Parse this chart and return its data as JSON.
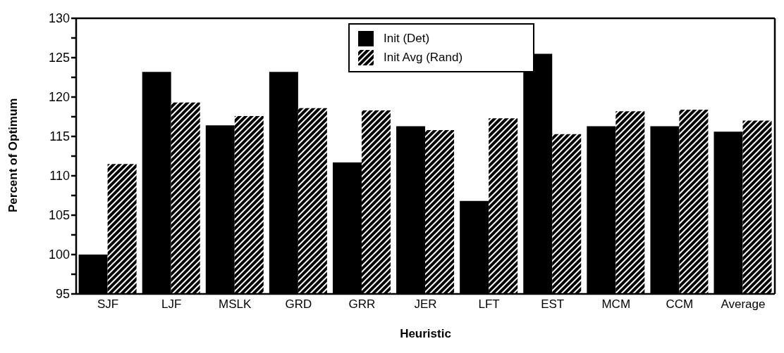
{
  "chart_data": {
    "type": "bar",
    "xlabel": "Heuristic",
    "ylabel": "Percent of Optimum",
    "categories": [
      "SJF",
      "LJF",
      "MSLK",
      "GRD",
      "GRR",
      "JER",
      "LFT",
      "EST",
      "MCM",
      "CCM",
      "Average"
    ],
    "series": [
      {
        "name": "Init (Det)",
        "color": "#000000",
        "values": [
          100.0,
          123.2,
          116.4,
          123.2,
          111.7,
          116.3,
          106.8,
          125.5,
          116.3,
          116.3,
          115.6
        ]
      },
      {
        "name": "Init Avg (Rand)",
        "color": "#000000",
        "values": [
          111.5,
          119.3,
          117.6,
          118.6,
          118.3,
          115.8,
          117.3,
          115.3,
          118.2,
          118.4,
          117.0
        ]
      }
    ],
    "ylim": [
      95,
      130
    ],
    "yticks": [
      95,
      {
        "value": 97.5,
        "label": null
      },
      100,
      {
        "value": 102.5,
        "label": null
      },
      105,
      {
        "value": 107.5,
        "label": null
      },
      110,
      {
        "value": 112.5,
        "label": null
      },
      115,
      {
        "value": 117.5,
        "label": null
      },
      120,
      {
        "value": 122.5,
        "label": null
      },
      125,
      {
        "value": 127.5,
        "label": null
      },
      130
    ],
    "grid": false,
    "legend": "top"
  }
}
